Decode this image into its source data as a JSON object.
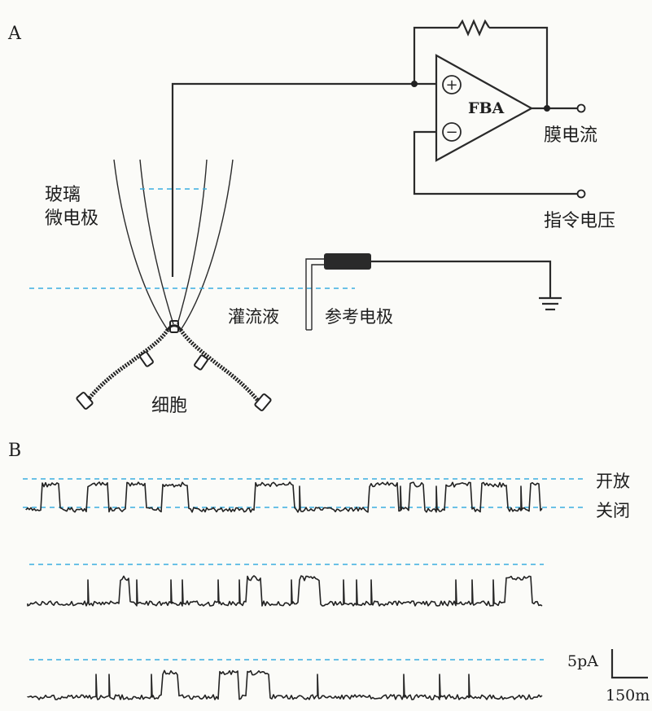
{
  "panels": {
    "a": {
      "label": "A"
    },
    "b": {
      "label": "B"
    }
  },
  "circuit": {
    "amplifier_label": "FBA",
    "plus_symbol": "+",
    "minus_symbol": "−",
    "output_label": "膜电流",
    "command_label": "指令电压"
  },
  "pipette": {
    "label_line1": "玻璃",
    "label_line2": "微电极"
  },
  "bath": {
    "perfusion_label": "灌流液",
    "reference_label": "参考电极"
  },
  "cell": {
    "label": "细胞"
  },
  "recording": {
    "open_label": "开放",
    "closed_label": "关闭",
    "scale_y_label": "5pA",
    "scale_x_label": "150m"
  },
  "colors": {
    "ink": "#1e1e1e",
    "dashed_reference": "#3aaee0",
    "background": "#fbfbf8"
  }
}
